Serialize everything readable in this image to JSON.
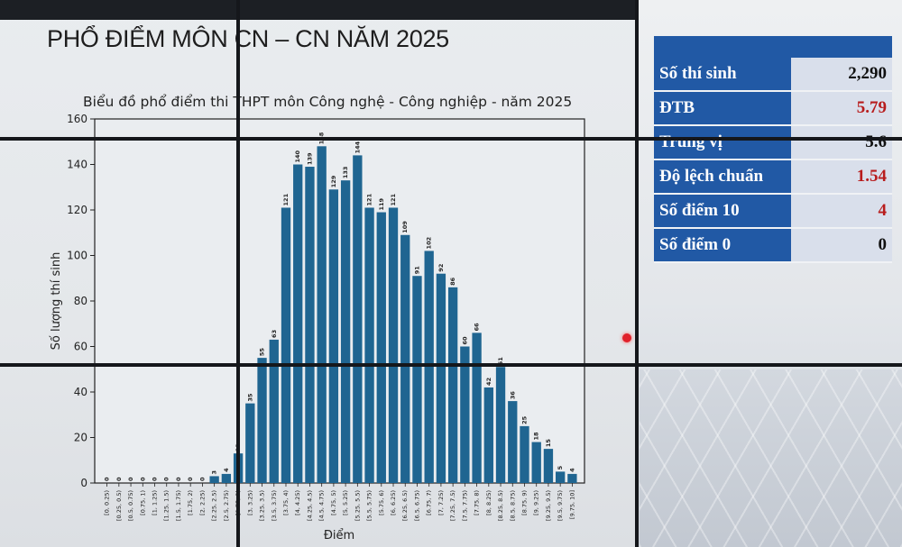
{
  "slide": {
    "title": "PHỔ ĐIỂM MÔN CN – CN NĂM 2025"
  },
  "chart_data": {
    "type": "bar",
    "title": "Biểu đồ phổ điểm thi THPT môn Công nghệ - Công nghiệp - năm 2025",
    "xlabel": "Điểm",
    "ylabel": "Số lượng thí sinh",
    "ylim": [
      0,
      160
    ],
    "yticks": [
      0,
      20,
      40,
      60,
      80,
      100,
      120,
      140,
      160
    ],
    "grid": false,
    "bar_color": "#1f6591",
    "categories": [
      "[0, 0.25)",
      "[0.25, 0.5)",
      "[0.5, 0.75)",
      "[0.75, 1)",
      "[1, 1.25)",
      "[1.25, 1.5)",
      "[1.5, 1.75)",
      "[1.75, 2)",
      "[2, 2.25)",
      "[2.25, 2.5)",
      "[2.5, 2.75)",
      "[2.75, 3)",
      "[3, 3.25)",
      "[3.25, 3.5)",
      "[3.5, 3.75)",
      "[3.75, 4)",
      "[4, 4.25)",
      "[4.25, 4.5)",
      "[4.5, 4.75)",
      "[4.75, 5)",
      "[5, 5.25)",
      "[5.25, 5.5)",
      "[5.5, 5.75)",
      "[5.75, 6)",
      "[6, 6.25)",
      "[6.25, 6.5)",
      "[6.5, 6.75)",
      "[6.75, 7)",
      "[7, 7.25)",
      "[7.25, 7.5)",
      "[7.5, 7.75)",
      "[7.75, 8)",
      "[8, 8.25)",
      "[8.25, 8.5)",
      "[8.5, 8.75)",
      "[8.75, 9)",
      "[9, 9.25)",
      "[9.25, 9.5)",
      "[9.5, 9.75)",
      "[9.75, 10]"
    ],
    "values": [
      0,
      0,
      0,
      0,
      0,
      0,
      0,
      0,
      0,
      3,
      4,
      13,
      35,
      55,
      63,
      121,
      140,
      139,
      148,
      129,
      133,
      144,
      121,
      119,
      121,
      109,
      91,
      102,
      92,
      86,
      60,
      66,
      42,
      51,
      36,
      25,
      18,
      15,
      5,
      4
    ]
  },
  "stats": {
    "rows": [
      {
        "label": "Số thí sinh",
        "value": "2,290",
        "highlight": false
      },
      {
        "label": "ĐTB",
        "value": "5.79",
        "highlight": true
      },
      {
        "label": "Trung vị",
        "value": "5.6",
        "highlight": false
      },
      {
        "label": "Độ lệch chuẩn",
        "value": "1.54",
        "highlight": true
      },
      {
        "label": "Số điểm 10",
        "value": "4",
        "highlight": true
      },
      {
        "label": "Số điểm 0",
        "value": "0",
        "highlight": false
      }
    ],
    "label_bg": "#2159a5",
    "value_bg": "#d9dfeb",
    "highlight_color": "#b81c1c"
  }
}
